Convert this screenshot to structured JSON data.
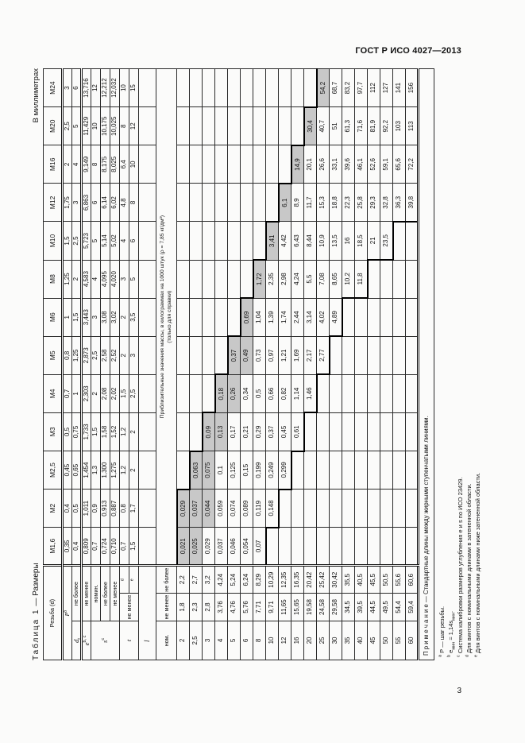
{
  "page": {
    "standard": "ГОСТ Р ИСО 4027—2013",
    "number": "3",
    "units": "В миллиметрах",
    "caption_word": "Таблица 1",
    "caption_rest": " — Размеры"
  },
  "table": {
    "corner": "Резьба (d)",
    "sizes": [
      "М1,6",
      "М2",
      "М2,5",
      "М3",
      "М4",
      "М5",
      "М6",
      "М8",
      "М10",
      "М12",
      "М16",
      "М20",
      "М24"
    ],
    "labels": {
      "p": "Р",
      "p_sup": "а",
      "dt": "d",
      "dt_sub": "t",
      "e": "е",
      "e_sup": "b, с",
      "s": "s",
      "s_sup": "с",
      "t": "t",
      "max": "не более",
      "min": "не менее",
      "nom": "номин.",
      "t_mark_short": "d",
      "t_mark_long": "е",
      "l": "l",
      "len_nom": "ном.",
      "len_min": "не менее",
      "len_max": "не более"
    },
    "mass_header": [
      "Приблизительные значения массы, в килограммах на 1000 штук (ρ = 7,85 кг/дм³)",
      "(только для справки)"
    ],
    "dims": {
      "p": [
        "0,35",
        "0,4",
        "0,45",
        "0,5",
        "0,7",
        "0,8",
        "1",
        "1,25",
        "1,5",
        "1,75",
        "2",
        "2,5",
        "3"
      ],
      "dt": [
        "0,4",
        "0,5",
        "0,65",
        "0,75",
        "1",
        "1,25",
        "1,5",
        "2",
        "2,5",
        "3",
        "4",
        "5",
        "6"
      ],
      "e": [
        "0,809",
        "1,011",
        "1,454",
        "1,733",
        "2,303",
        "2,873",
        "3,443",
        "4,583",
        "5,723",
        "6,863",
        "9,149",
        "11,429",
        "13,716"
      ],
      "s_nom": [
        "0,7",
        "0,9",
        "1,3",
        "1,5",
        "2",
        "2,5",
        "3",
        "4",
        "5",
        "6",
        "8",
        "10",
        "12"
      ],
      "s_max": [
        "0,724",
        "0,913",
        "1,300",
        "1,58",
        "2,08",
        "2,58",
        "3,08",
        "4,095",
        "5,14",
        "6,14",
        "8,175",
        "10,175",
        "12,212"
      ],
      "s_min": [
        "0,710",
        "0,887",
        "1,275",
        "1,52",
        "2,02",
        "2,52",
        "3,02",
        "4,020",
        "5,02",
        "6,02",
        "8,025",
        "10,025",
        "12,032"
      ],
      "t_short": [
        "0,7",
        "0,8",
        "1,2",
        "1,2",
        "1,5",
        "2",
        "2",
        "3",
        "4",
        "4,8",
        "6,4",
        "8",
        "10"
      ],
      "t_long": [
        "1,5",
        "1,7",
        "2",
        "2",
        "2,5",
        "3",
        "3,5",
        "5",
        "6",
        "8",
        "10",
        "12",
        "15"
      ]
    },
    "lengths": {
      "nom": [
        "2",
        "2,5",
        "3",
        "4",
        "5",
        "6",
        "8",
        "10",
        "12",
        "16",
        "20",
        "25",
        "30",
        "35",
        "40",
        "45",
        "50",
        "55",
        "60"
      ],
      "min": [
        "1,8",
        "2,3",
        "2,8",
        "3,76",
        "4,76",
        "5,76",
        "7,71",
        "9,71",
        "11,65",
        "15,65",
        "19,58",
        "24,58",
        "29,58",
        "34,5",
        "39,5",
        "44,5",
        "49,5",
        "54,4",
        "59,4"
      ],
      "max": [
        "2,2",
        "2,7",
        "3,2",
        "4,24",
        "5,24",
        "6,24",
        "8,29",
        "10,29",
        "12,35",
        "16,35",
        "20,42",
        "25,42",
        "30,42",
        "35,5",
        "40,5",
        "45,5",
        "50,5",
        "55,6",
        "60,6"
      ]
    },
    "mass": {
      "start": [
        0,
        0,
        1,
        2,
        3,
        4,
        5,
        6,
        7,
        8,
        9,
        10,
        11
      ],
      "shade": [
        2,
        3,
        2,
        2,
        2,
        2,
        1,
        1,
        1,
        1,
        1,
        1,
        1
      ],
      "values": [
        [
          "0,021",
          "0,025",
          "0,029",
          "0,037",
          "0,046",
          "0,054",
          "0,07"
        ],
        [
          "0,029",
          "0,037",
          "0,044",
          "0,059",
          "0,074",
          "0,089",
          "0,119",
          "0,148"
        ],
        [
          "0,063",
          "0,075",
          "0,1",
          "0,125",
          "0,15",
          "0,199",
          "0,249",
          "0,299"
        ],
        [
          "0,09",
          "0,13",
          "0,17",
          "0,21",
          "0,29",
          "0,37",
          "0,45",
          "0,61"
        ],
        [
          "0,18",
          "0,26",
          "0,34",
          "0,5",
          "0,66",
          "0,82",
          "1,14",
          "1,46"
        ],
        [
          "0,37",
          "0,49",
          "0,73",
          "0,97",
          "1,21",
          "1,69",
          "2,17",
          "2,77"
        ],
        [
          "0,69",
          "1,04",
          "1,39",
          "1,74",
          "2,44",
          "3,14",
          "4,02",
          "4,89"
        ],
        [
          "1,72",
          "2,35",
          "2,98",
          "4,24",
          "5,5",
          "7,08",
          "8,65",
          "10,2",
          "11,8"
        ],
        [
          "3,41",
          "4,42",
          "6,43",
          "8,44",
          "10,9",
          "13,5",
          "16",
          "18,5",
          "21",
          "23,5"
        ],
        [
          "6,1",
          "8,9",
          "11,7",
          "15,3",
          "18,8",
          "22,3",
          "25,8",
          "29,3",
          "32,8",
          "36,3",
          "39,8"
        ],
        [
          "14,9",
          "20,1",
          "26,6",
          "33,1",
          "39,6",
          "46,1",
          "52,6",
          "59,1",
          "65,6",
          "72,2"
        ],
        [
          "30,4",
          "40,7",
          "51",
          "61,3",
          "71,6",
          "81,9",
          "92,2",
          "103",
          "113"
        ],
        [
          "54,2",
          "68,7",
          "83,2",
          "97,7",
          "112",
          "127",
          "141",
          "156"
        ]
      ]
    },
    "note": "П р и м е ч а н и е — Стандартные длины между жирными ступенчатыми линиями."
  },
  "footnotes": [
    {
      "mark": "а",
      "text": "Р — шаг резьбы."
    },
    {
      "mark": "b",
      "text": "е<sub>мин</sub> = 1,14s<sub>мин</sub>."
    },
    {
      "mark": "с",
      "text": "Система калибровки размеров углубления е и s по ИСО 23429."
    },
    {
      "mark": "d",
      "text": "Для винтов с номинальными длинами в затененной области."
    },
    {
      "mark": "е",
      "text": "Для винтов с номинальными длинами ниже затененной области."
    }
  ]
}
